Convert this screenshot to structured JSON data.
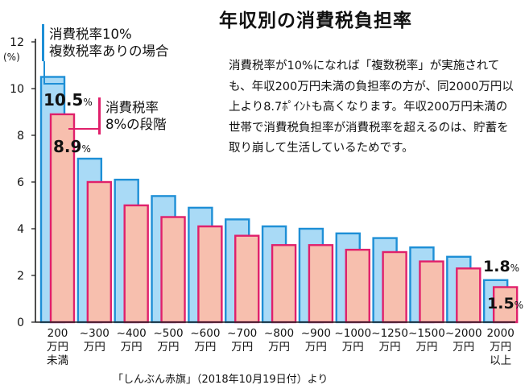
{
  "title": "年収別の消費税負担率",
  "description": "消費税率が10%になれば「複数税率」が実施されても、年収200万円未満の負担率の方が、同2000万円以上より8.7ﾎﾟｲﾝﾄも高くなります。年収200万円未満の世帯で消費税負担率が消費税率を超えるのは、貯蓄を取り崩して生活しているためです。",
  "source": "「しんぶん赤旗」（2018年10月19日付）より",
  "legend": {
    "blue_line1": "消費税率10%",
    "blue_line2": "複数税率ありの場合",
    "pink_line1": "消費税率",
    "pink_line2": "8%の段階"
  },
  "callouts": {
    "first_blue": "10.5",
    "first_pink": "8.9",
    "last_blue": "1.8",
    "last_pink": "1.5",
    "unit": "%"
  },
  "colors": {
    "blue_fill": "#a9daf6",
    "blue_stroke": "#1e8fd6",
    "pink_fill": "#f7bfae",
    "pink_stroke": "#e0206b",
    "axis": "#222222"
  },
  "chart_data": {
    "type": "bar",
    "title": "年収別の消費税負担率",
    "ylabel": "(%)",
    "xlabel": "",
    "ylim": [
      0,
      12
    ],
    "yticks": [
      0,
      2,
      4,
      6,
      8,
      10,
      12
    ],
    "grid": false,
    "categories": [
      "200万円未満",
      "~300万円",
      "~400万円",
      "~500万円",
      "~600万円",
      "~700万円",
      "~800万円",
      "~900万円",
      "~1000万円",
      "~1250万円",
      "~1500万円",
      "~2000万円",
      "2000万円以上"
    ],
    "category_lines": [
      [
        "200",
        "万円",
        "未満"
      ],
      [
        "~300",
        "万円"
      ],
      [
        "~400",
        "万円"
      ],
      [
        "~500",
        "万円"
      ],
      [
        "~600",
        "万円"
      ],
      [
        "~700",
        "万円"
      ],
      [
        "~800",
        "万円"
      ],
      [
        "~900",
        "万円"
      ],
      [
        "~1000",
        "万円"
      ],
      [
        "~1250",
        "万円"
      ],
      [
        "~1500",
        "万円"
      ],
      [
        "~2000",
        "万円"
      ],
      [
        "2000",
        "万円",
        "以上"
      ]
    ],
    "series": [
      {
        "name": "消費税率10% 複数税率ありの場合",
        "values": [
          10.5,
          7.0,
          6.1,
          5.4,
          4.9,
          4.4,
          4.1,
          4.0,
          3.8,
          3.6,
          3.2,
          2.8,
          1.8
        ]
      },
      {
        "name": "消費税率 8%の段階",
        "values": [
          8.9,
          6.0,
          5.0,
          4.5,
          4.1,
          3.7,
          3.3,
          3.3,
          3.1,
          3.0,
          2.6,
          2.3,
          1.5
        ]
      }
    ]
  }
}
